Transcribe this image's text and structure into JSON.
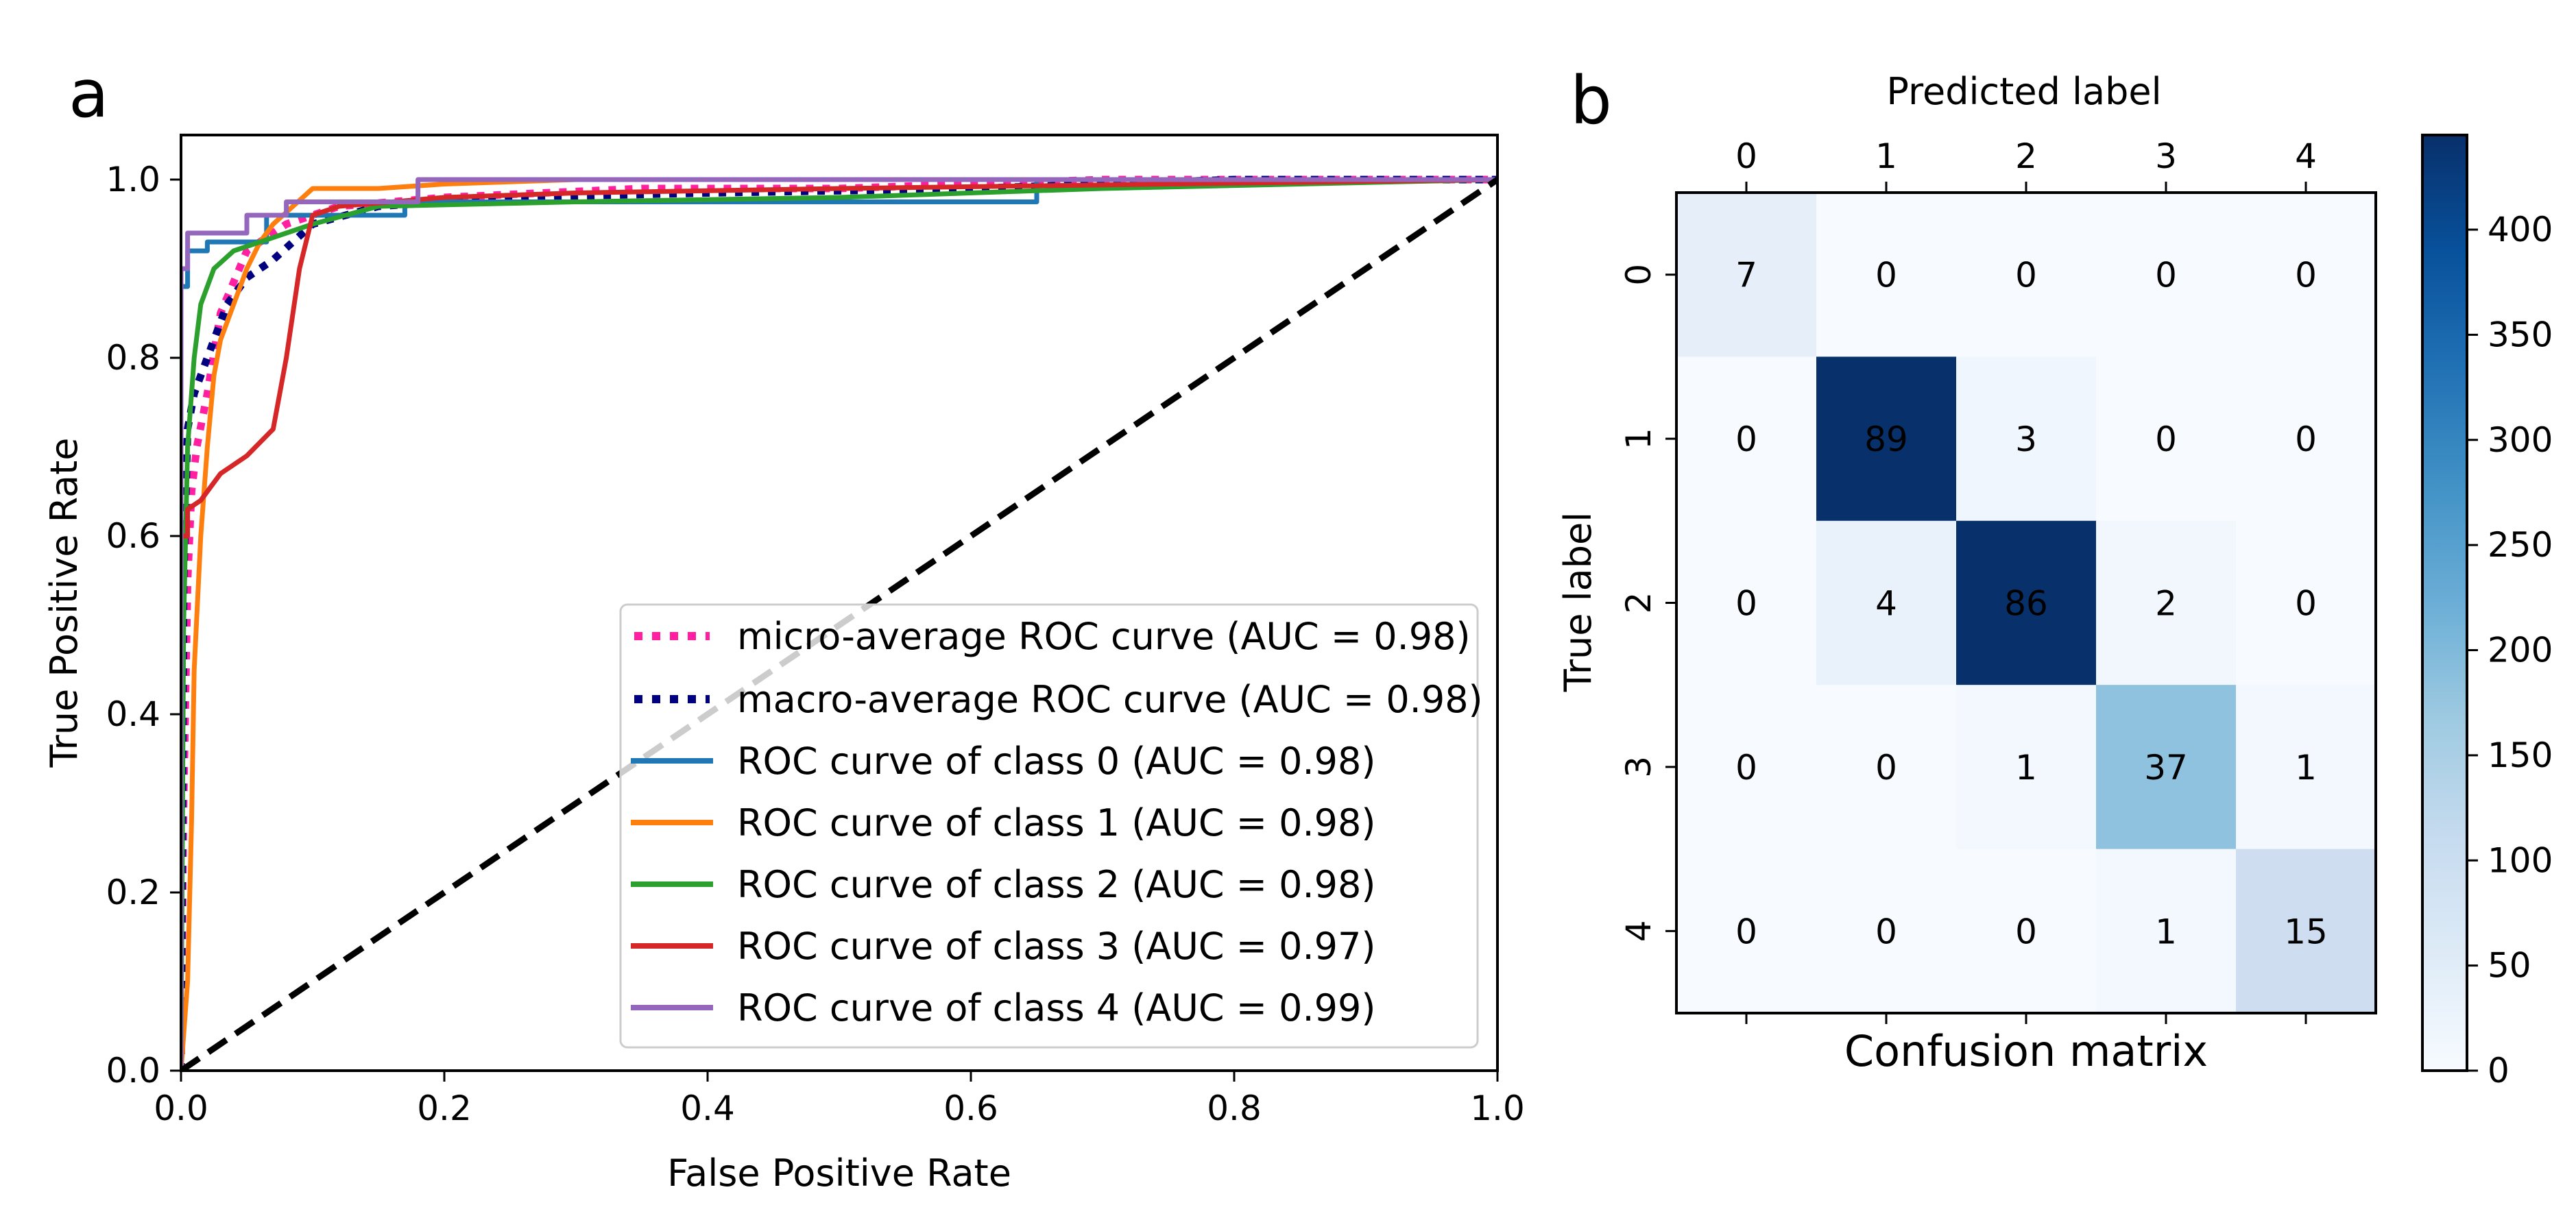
{
  "panels": {
    "a": "a",
    "b": "b"
  },
  "chart_data": [
    {
      "type": "line",
      "title": "",
      "xlabel": "False Positive Rate",
      "ylabel": "True Positive Rate",
      "xlim": [
        0.0,
        1.0
      ],
      "ylim": [
        0.0,
        1.05
      ],
      "xticks": [
        "0.0",
        "0.2",
        "0.4",
        "0.6",
        "0.8",
        "1.0"
      ],
      "yticks": [
        "0.0",
        "0.2",
        "0.4",
        "0.6",
        "0.8",
        "1.0"
      ],
      "grid": false,
      "legend_position": "lower-right",
      "series": [
        {
          "name": "micro-average ROC curve (AUC = 0.98)",
          "color": "#ff1fa0",
          "style": "dotted",
          "x": [
            0,
            0.002,
            0.005,
            0.008,
            0.012,
            0.02,
            0.03,
            0.05,
            0.08,
            0.12,
            0.2,
            0.35,
            0.5,
            0.7,
            0.9,
            1.0
          ],
          "y": [
            0,
            0.3,
            0.55,
            0.65,
            0.7,
            0.76,
            0.85,
            0.92,
            0.95,
            0.97,
            0.98,
            0.99,
            0.99,
            1.0,
            1.0,
            1.0
          ]
        },
        {
          "name": "macro-average ROC curve (AUC = 0.98)",
          "color": "#000080",
          "style": "dotted",
          "x": [
            0,
            0.002,
            0.005,
            0.01,
            0.02,
            0.035,
            0.05,
            0.07,
            0.1,
            0.15,
            0.25,
            0.4,
            0.6,
            0.8,
            1.0
          ],
          "y": [
            0,
            0.55,
            0.72,
            0.76,
            0.8,
            0.86,
            0.89,
            0.91,
            0.95,
            0.97,
            0.98,
            0.985,
            0.99,
            1.0,
            1.0
          ]
        },
        {
          "name": "ROC curve of class 0 (AUC = 0.98)",
          "color": "#1f77b4",
          "style": "solid",
          "x": [
            0,
            0.0,
            0.005,
            0.005,
            0.02,
            0.02,
            0.065,
            0.065,
            0.17,
            0.17,
            0.65,
            0.65,
            1.0
          ],
          "y": [
            0,
            0.88,
            0.88,
            0.92,
            0.92,
            0.93,
            0.93,
            0.96,
            0.96,
            0.975,
            0.975,
            1.0,
            1.0
          ]
        },
        {
          "name": "ROC curve of class 1 (AUC = 0.98)",
          "color": "#ff7f0e",
          "style": "solid",
          "x": [
            0,
            0.005,
            0.008,
            0.01,
            0.015,
            0.02,
            0.025,
            0.03,
            0.04,
            0.05,
            0.06,
            0.07,
            0.085,
            0.1,
            0.15,
            0.2,
            0.3,
            1.0
          ],
          "y": [
            0,
            0.1,
            0.28,
            0.45,
            0.6,
            0.7,
            0.78,
            0.82,
            0.86,
            0.9,
            0.93,
            0.95,
            0.97,
            0.99,
            0.99,
            0.995,
            1.0,
            1.0
          ]
        },
        {
          "name": "ROC curve of class 2 (AUC = 0.98)",
          "color": "#2ca02c",
          "style": "solid",
          "x": [
            0,
            0.002,
            0.005,
            0.01,
            0.015,
            0.025,
            0.04,
            0.06,
            0.08,
            0.1,
            0.15,
            0.3,
            0.5,
            0.7,
            0.85,
            1.0
          ],
          "y": [
            0,
            0.5,
            0.7,
            0.8,
            0.86,
            0.9,
            0.92,
            0.93,
            0.94,
            0.95,
            0.97,
            0.975,
            0.98,
            0.99,
            0.995,
            1.0
          ]
        },
        {
          "name": "ROC curve of class 3 (AUC = 0.97)",
          "color": "#d62728",
          "style": "solid",
          "x": [
            0,
            0.0,
            0.005,
            0.005,
            0.015,
            0.03,
            0.05,
            0.07,
            0.08,
            0.085,
            0.09,
            0.095,
            0.1,
            0.12,
            0.2,
            0.3,
            0.5,
            1.0
          ],
          "y": [
            0,
            0.6,
            0.6,
            0.63,
            0.64,
            0.67,
            0.69,
            0.72,
            0.8,
            0.85,
            0.9,
            0.93,
            0.96,
            0.97,
            0.98,
            0.985,
            0.99,
            1.0
          ]
        },
        {
          "name": "ROC curve of class 4 (AUC = 0.99)",
          "color": "#9467bd",
          "style": "solid",
          "x": [
            0,
            0.0,
            0.005,
            0.005,
            0.05,
            0.05,
            0.08,
            0.08,
            0.18,
            0.18,
            1.0
          ],
          "y": [
            0,
            0.9,
            0.9,
            0.94,
            0.94,
            0.96,
            0.96,
            0.975,
            0.975,
            1.0,
            1.0
          ]
        },
        {
          "name": "chance",
          "color": "#000000",
          "style": "dashed",
          "in_legend": false,
          "x": [
            0,
            1
          ],
          "y": [
            0,
            1
          ]
        }
      ]
    },
    {
      "type": "heatmap",
      "title": "Confusion matrix",
      "xlabel": "Predicted label",
      "ylabel": "True label",
      "x_categories": [
        "0",
        "1",
        "2",
        "3",
        "4"
      ],
      "y_categories": [
        "0",
        "1",
        "2",
        "3",
        "4"
      ],
      "values": [
        [
          7,
          0,
          0,
          0,
          0
        ],
        [
          0,
          89,
          3,
          0,
          0
        ],
        [
          0,
          4,
          86,
          2,
          0
        ],
        [
          0,
          0,
          1,
          37,
          1
        ],
        [
          0,
          0,
          0,
          1,
          15
        ]
      ],
      "cell_fills": [
        [
          "#e6eff9",
          "#f7fbff",
          "#f7fbff",
          "#f7fbff",
          "#f7fbff"
        ],
        [
          "#f7fbff",
          "#08306b",
          "#f0f6fd",
          "#f7fbff",
          "#f7fbff"
        ],
        [
          "#f7fbff",
          "#e9f2fb",
          "#08306b",
          "#f2f7fd",
          "#f7fbff"
        ],
        [
          "#f7fbff",
          "#f7fbff",
          "#f3f8fe",
          "#8fc2de",
          "#f3f8fe"
        ],
        [
          "#f7fbff",
          "#f7fbff",
          "#f7fbff",
          "#f3f8fe",
          "#ceddf0"
        ]
      ],
      "colorbar": {
        "ticks": [
          "0",
          "50",
          "100",
          "150",
          "200",
          "250",
          "300",
          "350",
          "400"
        ],
        "range": [
          0,
          445
        ],
        "colormap": "Blues"
      }
    }
  ]
}
